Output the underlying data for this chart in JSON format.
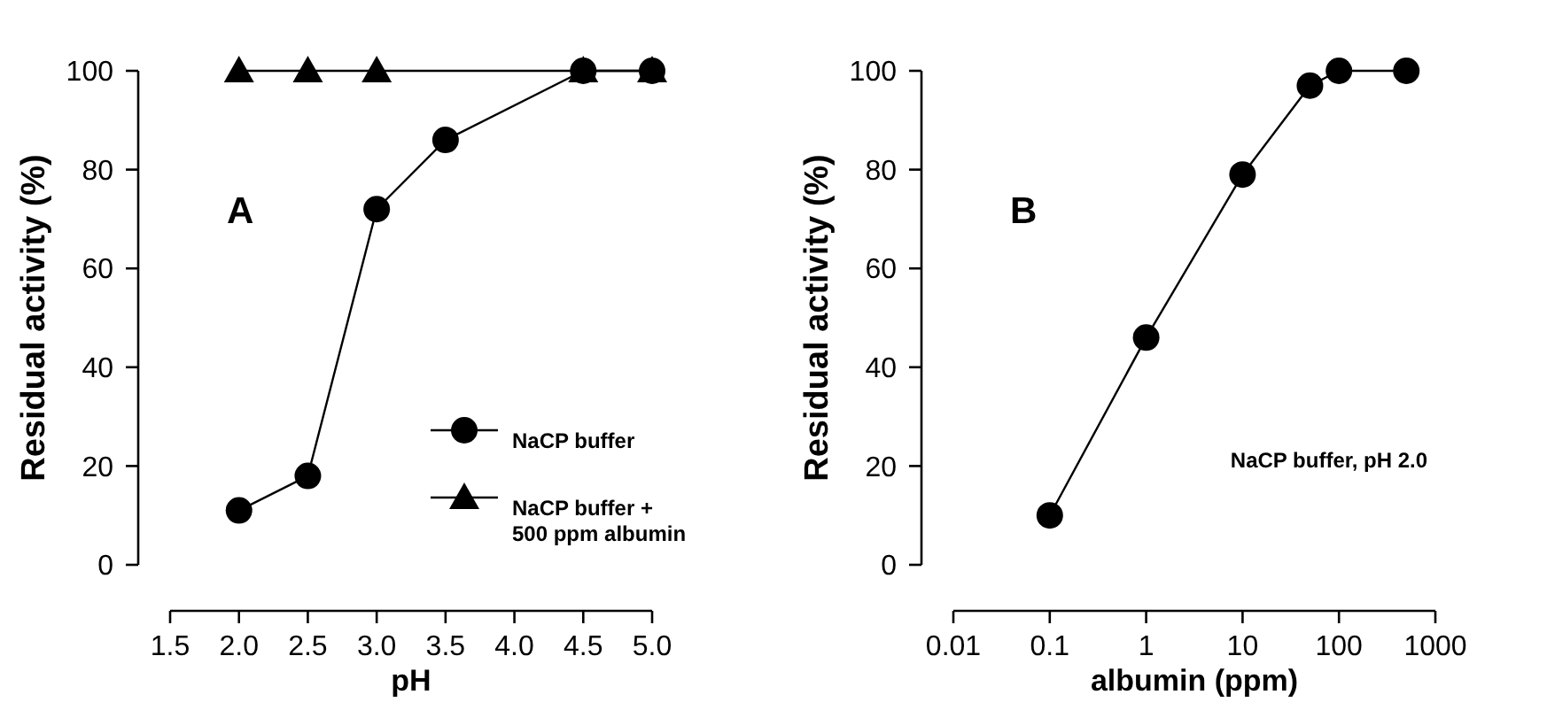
{
  "chart_data": [
    {
      "type": "line",
      "xlabel": "pH",
      "ylabel": "Residual activity (%)",
      "xlim": [
        1.5,
        5.0
      ],
      "ylim": [
        0,
        100
      ],
      "xticks": [
        {
          "value": 1.5,
          "label": "1.5"
        },
        {
          "value": 2,
          "label": "2.0"
        },
        {
          "value": 2.5,
          "label": "2.5"
        },
        {
          "value": 3,
          "label": "3.0"
        },
        {
          "value": 3.5,
          "label": "3.5"
        },
        {
          "value": 4,
          "label": "4.0"
        },
        {
          "value": 4.5,
          "label": "4.5"
        },
        {
          "value": 5,
          "label": "5.0"
        }
      ],
      "yticks": [
        0,
        20,
        40,
        60,
        80,
        100
      ],
      "grid": false,
      "legend": "bottom right",
      "annotations": [
        "A"
      ],
      "series": [
        {
          "name": "NaCP buffer + 500 ppm albumin",
          "color": "#000000",
          "marker": "triangle",
          "x": [
            2.0,
            2.5,
            3.0,
            4.5,
            5.0
          ],
          "values": [
            100,
            100,
            100,
            100,
            100
          ]
        },
        {
          "name": "NaCP buffer",
          "color": "#000000",
          "marker": "circle",
          "x": [
            2.0,
            2.5,
            3.0,
            3.5,
            4.5,
            5.0
          ],
          "values": [
            11,
            18,
            72,
            86,
            100,
            100
          ]
        }
      ]
    },
    {
      "type": "line",
      "xlabel": "albumin (ppm)",
      "ylabel": "Residual activity (%)",
      "log": "x",
      "xlim": [
        0.01,
        1000
      ],
      "ylim": [
        0,
        100
      ],
      "xticks": [
        0.01,
        0.1,
        1,
        10,
        100,
        1000
      ],
      "yticks": [
        0,
        20,
        40,
        60,
        80,
        100
      ],
      "grid": false,
      "legend": false,
      "annotations": [
        "B",
        "NaCP buffer, pH 2.0"
      ],
      "series": [
        {
          "color": "#000000",
          "marker": "circle",
          "x": [
            0.1,
            1,
            10,
            50,
            100,
            500
          ],
          "values": [
            10,
            46,
            79,
            97,
            100,
            100
          ]
        }
      ]
    }
  ]
}
